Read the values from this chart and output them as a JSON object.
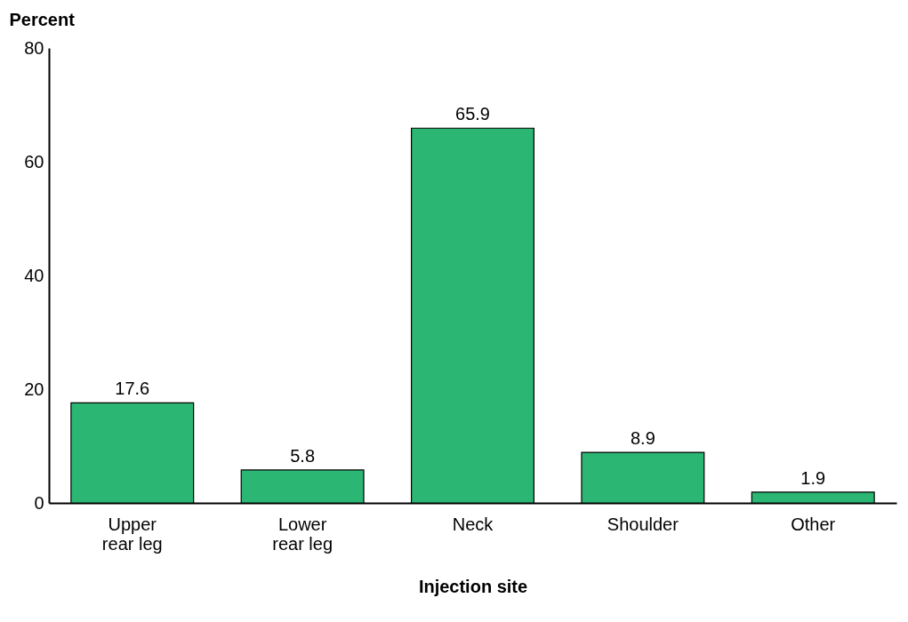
{
  "chart_data": {
    "type": "bar",
    "categories": [
      "Upper\nrear leg",
      "Lower\nrear leg",
      "Neck",
      "Shoulder",
      "Other"
    ],
    "values": [
      17.6,
      5.8,
      65.9,
      8.9,
      1.9
    ],
    "color": "#2bb673",
    "xlabel": "Injection site",
    "ylabel": "Percent",
    "ylim": [
      0,
      80
    ],
    "yticks": [
      0,
      20,
      40,
      60,
      80
    ],
    "grid": false,
    "data_labels": true
  }
}
